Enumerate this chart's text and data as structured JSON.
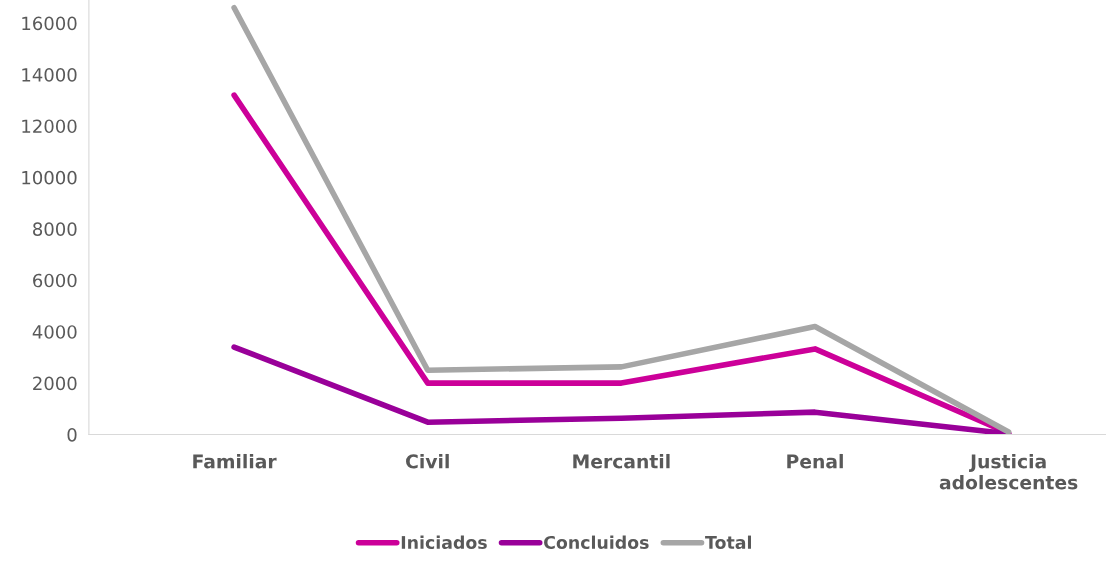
{
  "chart_data": {
    "type": "line",
    "categories": [
      "Familiar",
      "Civil",
      "Mercantil",
      "Penal",
      "Justicia\nadolescentes"
    ],
    "series": [
      {
        "name": "Iniciados",
        "color": "#cc0099",
        "values": [
          13200,
          2000,
          2000,
          3330,
          50
        ]
      },
      {
        "name": "Concluidos",
        "color": "#990099",
        "values": [
          3400,
          480,
          630,
          870,
          30
        ]
      },
      {
        "name": "Total",
        "color": "#a6a6a6",
        "values": [
          16600,
          2500,
          2630,
          4200,
          100
        ]
      }
    ],
    "ylim": [
      0,
      16900
    ],
    "yticks": [
      0,
      2000,
      4000,
      6000,
      8000,
      10000,
      12000,
      14000,
      16000
    ],
    "grid": false,
    "legend": "bottom",
    "marker": "none",
    "line_style": "solid"
  }
}
